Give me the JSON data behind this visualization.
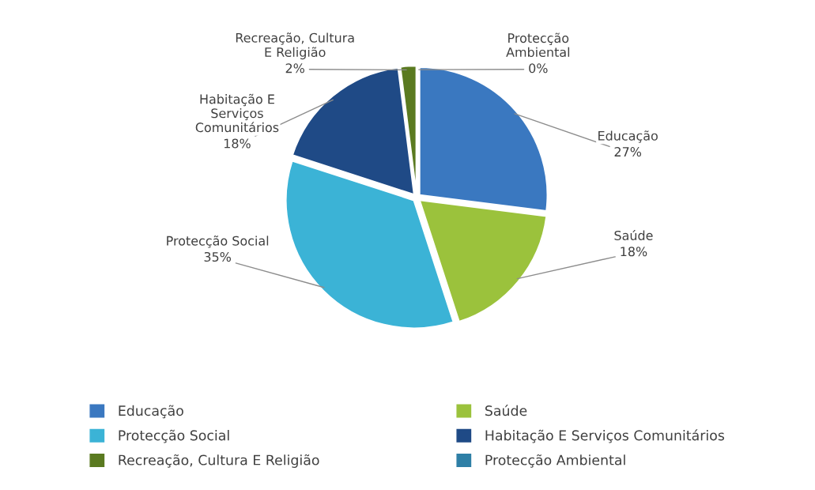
{
  "chart_data": {
    "type": "pie",
    "categories": [
      "Educação",
      "Saúde",
      "Protecção Social",
      "Habitação E Serviços Comunitários",
      "Recreação, Cultura E Religião",
      "Protecção Ambiental"
    ],
    "values": [
      27,
      18,
      35,
      18,
      2,
      0
    ],
    "value_labels": [
      "27%",
      "18%",
      "35%",
      "18%",
      "2%",
      "0%"
    ],
    "colors": [
      "#3a78c0",
      "#9bc23c",
      "#3bb3d6",
      "#1f4a86",
      "#5a7a20",
      "#2e7fa6"
    ],
    "legend": "bottom"
  }
}
